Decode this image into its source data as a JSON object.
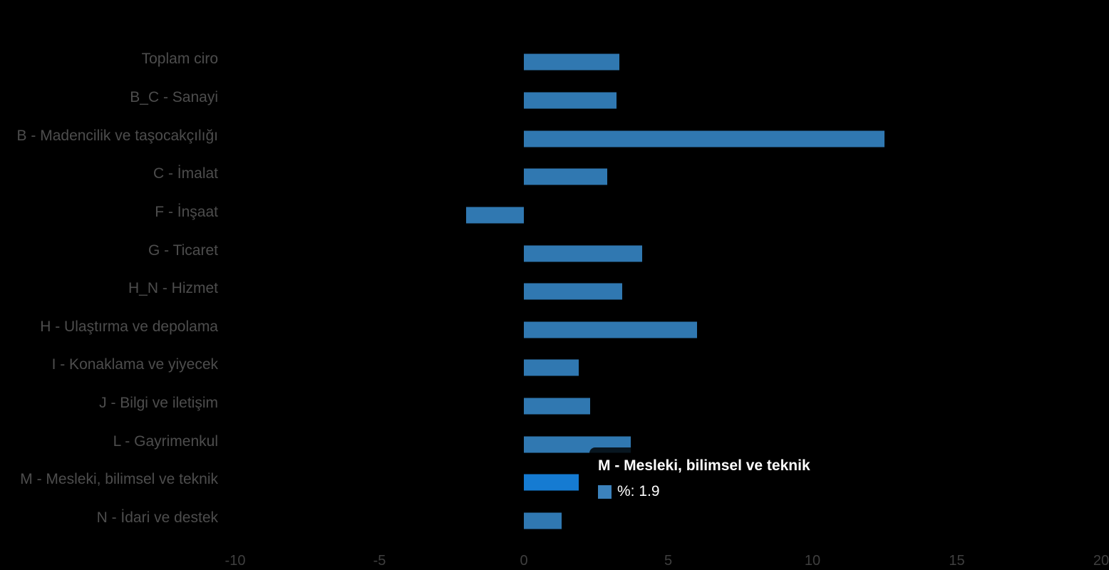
{
  "chart_data": {
    "type": "bar",
    "orientation": "horizontal",
    "title": "",
    "xlabel": "",
    "ylabel": "",
    "grid": false,
    "xlim": [
      -10,
      20
    ],
    "axis_ticks": [
      -10,
      -5,
      0,
      5,
      10,
      15,
      20
    ],
    "categories": [
      "Toplam ciro",
      "B_C - Sanayi",
      "B - Madencilik ve taşocakçılığı",
      "C - İmalat",
      "F - İnşaat",
      "G - Ticaret",
      "H_N - Hizmet",
      "H - Ulaştırma ve depolama",
      "I - Konaklama ve yiyecek",
      "J - Bilgi ve iletişim",
      "L - Gayrimenkul",
      "M - Mesleki, bilimsel ve teknik",
      "N - İdari ve destek"
    ],
    "series": [
      {
        "name": "%",
        "values": [
          3.3,
          3.2,
          12.5,
          2.9,
          -2.0,
          4.1,
          3.4,
          6.0,
          1.9,
          2.3,
          3.7,
          1.9,
          1.3
        ]
      }
    ],
    "highlighted_index": 11,
    "colors": {
      "background": "#000000",
      "bar": "#3078B1",
      "bar_hover": "#157BD2",
      "category_label": "#4d4d4d",
      "tick_label": "#3f3f3f"
    }
  },
  "tooltip": {
    "title": "M - Mesleki, bilimsel ve teknik",
    "series_name": "%",
    "value": "1.9",
    "text": "%: 1.9",
    "swatch_color": "#3C82BC"
  }
}
